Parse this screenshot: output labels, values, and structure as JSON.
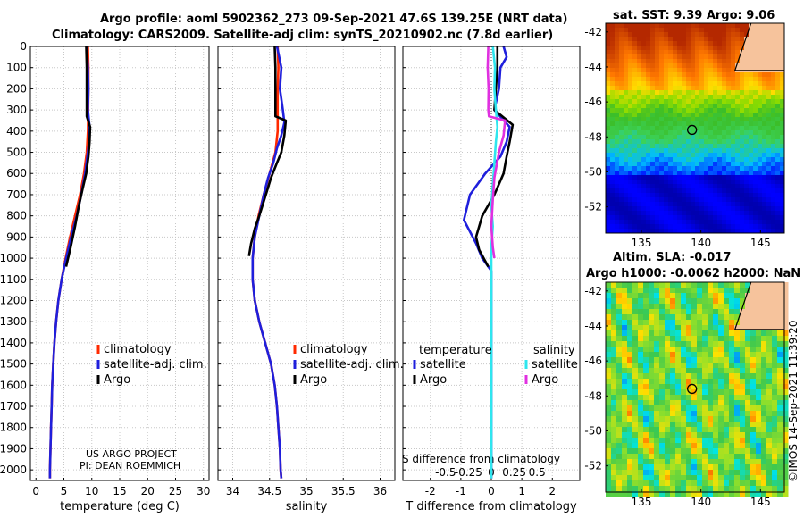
{
  "titles": {
    "line1": "Argo profile: aoml 5902362_273 09-Sep-2021 47.6S 139.25E (NRT data)",
    "line2": "Climatology: CARS2009. Satellite-adj clim: synTS_20210902.nc (7.8d earlier)",
    "sst": "sat. SST: 9.39 Argo: 9.06",
    "sla1": "Altim. SLA: -0.017",
    "sla2": "Argo h1000: -0.0062 h2000: NaN",
    "timestamp": "©IMOS 14-Sep-2021 11:39:20"
  },
  "project": {
    "line1": "US ARGO PROJECT",
    "line2": "PI: DEAN ROEMMICH"
  },
  "colors": {
    "climatology": "#ff2a00",
    "satellite": "#1f1fdc",
    "argo": "#000000",
    "sat_salinity": "#2ee6ee",
    "argo_salinity": "#e030e0",
    "grid": "#c8c8c8"
  },
  "depth_ticks": [
    "0",
    "100",
    "200",
    "300",
    "400",
    "500",
    "600",
    "700",
    "800",
    "900",
    "1000",
    "1100",
    "1200",
    "1300",
    "1400",
    "1500",
    "1600",
    "1700",
    "1800",
    "1900",
    "2000"
  ],
  "chart_data": [
    {
      "type": "line",
      "id": "temperature",
      "xlabel": "temperature (deg C)",
      "ylabel": "depth",
      "xlim": [
        -1,
        31
      ],
      "ylim": [
        2050,
        0
      ],
      "xticks": [
        0,
        5,
        10,
        15,
        20,
        25,
        30
      ],
      "xtick_labels": [
        "0",
        "5",
        "10",
        "15",
        "20",
        "25",
        "30"
      ],
      "legend": {
        "position": "bottom-right",
        "items": [
          "climatology",
          "satellite-adj. clim.",
          "Argo"
        ]
      },
      "series": [
        {
          "name": "climatology",
          "color": "#ff2a00",
          "points": [
            [
              9.3,
              0
            ],
            [
              9.4,
              100
            ],
            [
              9.4,
              200
            ],
            [
              9.35,
              300
            ],
            [
              9.3,
              400
            ],
            [
              9.1,
              500
            ],
            [
              8.6,
              600
            ],
            [
              7.9,
              700
            ],
            [
              7.0,
              800
            ],
            [
              6.1,
              900
            ],
            [
              5.3,
              1000
            ],
            [
              4.6,
              1100
            ],
            [
              4.0,
              1200
            ],
            [
              3.6,
              1300
            ],
            [
              3.3,
              1400
            ],
            [
              3.1,
              1500
            ],
            [
              2.9,
              1600
            ],
            [
              2.8,
              1700
            ],
            [
              2.7,
              1800
            ],
            [
              2.6,
              1900
            ],
            [
              2.5,
              2000
            ],
            [
              2.5,
              2040
            ]
          ]
        },
        {
          "name": "satellite-adj. clim.",
          "color": "#1f1fdc",
          "points": [
            [
              9.1,
              0
            ],
            [
              9.3,
              100
            ],
            [
              9.4,
              200
            ],
            [
              9.3,
              300
            ],
            [
              9.6,
              380
            ],
            [
              9.5,
              450
            ],
            [
              9.3,
              500
            ],
            [
              8.8,
              600
            ],
            [
              8.1,
              700
            ],
            [
              7.3,
              800
            ],
            [
              6.3,
              900
            ],
            [
              5.4,
              1000
            ],
            [
              4.6,
              1100
            ],
            [
              4.0,
              1200
            ],
            [
              3.6,
              1300
            ],
            [
              3.3,
              1400
            ],
            [
              3.1,
              1500
            ],
            [
              2.9,
              1600
            ],
            [
              2.8,
              1700
            ],
            [
              2.7,
              1800
            ],
            [
              2.6,
              1900
            ],
            [
              2.5,
              2000
            ],
            [
              2.5,
              2040
            ]
          ]
        },
        {
          "name": "Argo",
          "color": "#000000",
          "points": [
            [
              9.0,
              0
            ],
            [
              9.1,
              100
            ],
            [
              9.1,
              200
            ],
            [
              9.1,
              330
            ],
            [
              9.7,
              380
            ],
            [
              9.6,
              450
            ],
            [
              9.4,
              520
            ],
            [
              9.0,
              600
            ],
            [
              8.3,
              680
            ],
            [
              7.7,
              750
            ],
            [
              7.0,
              850
            ],
            [
              6.2,
              950
            ],
            [
              5.4,
              1040
            ]
          ]
        }
      ]
    },
    {
      "type": "line",
      "id": "salinity",
      "xlabel": "salinity",
      "ylabel": "depth",
      "xlim": [
        33.8,
        36.2
      ],
      "ylim": [
        2050,
        0
      ],
      "xticks": [
        34,
        34.5,
        35,
        35.5,
        36
      ],
      "xtick_labels": [
        "34",
        "34.5",
        "35",
        "35.5",
        "36"
      ],
      "legend": {
        "position": "bottom-right",
        "items": [
          "climatology",
          "satellite-adj. clim.",
          "Argo"
        ]
      },
      "series": [
        {
          "name": "climatology",
          "color": "#ff2a00",
          "points": [
            [
              34.61,
              0
            ],
            [
              34.62,
              100
            ],
            [
              34.61,
              200
            ],
            [
              34.61,
              300
            ],
            [
              34.61,
              400
            ],
            [
              34.58,
              500
            ],
            [
              34.5,
              600
            ],
            [
              34.42,
              700
            ],
            [
              34.35,
              800
            ],
            [
              34.3,
              900
            ],
            [
              34.27,
              1000
            ],
            [
              34.27,
              1100
            ],
            [
              34.3,
              1200
            ],
            [
              34.36,
              1300
            ],
            [
              34.44,
              1400
            ],
            [
              34.52,
              1500
            ],
            [
              34.57,
              1600
            ],
            [
              34.6,
              1700
            ],
            [
              34.62,
              1800
            ],
            [
              34.64,
              1900
            ],
            [
              34.65,
              2000
            ],
            [
              34.66,
              2040
            ]
          ]
        },
        {
          "name": "satellite-adj. clim.",
          "color": "#1f1fdc",
          "points": [
            [
              34.6,
              0
            ],
            [
              34.63,
              50
            ],
            [
              34.66,
              100
            ],
            [
              34.64,
              200
            ],
            [
              34.68,
              300
            ],
            [
              34.7,
              360
            ],
            [
              34.66,
              420
            ],
            [
              34.6,
              480
            ],
            [
              34.55,
              550
            ],
            [
              34.48,
              620
            ],
            [
              34.42,
              700
            ],
            [
              34.36,
              800
            ],
            [
              34.3,
              900
            ],
            [
              34.27,
              1000
            ],
            [
              34.27,
              1100
            ],
            [
              34.3,
              1200
            ],
            [
              34.36,
              1300
            ],
            [
              34.44,
              1400
            ],
            [
              34.52,
              1500
            ],
            [
              34.57,
              1600
            ],
            [
              34.6,
              1700
            ],
            [
              34.62,
              1800
            ],
            [
              34.64,
              1900
            ],
            [
              34.65,
              2000
            ],
            [
              34.66,
              2040
            ]
          ]
        },
        {
          "name": "Argo",
          "color": "#000000",
          "points": [
            [
              34.57,
              0
            ],
            [
              34.58,
              100
            ],
            [
              34.58,
              200
            ],
            [
              34.58,
              330
            ],
            [
              34.72,
              350
            ],
            [
              34.7,
              420
            ],
            [
              34.66,
              500
            ],
            [
              34.6,
              550
            ],
            [
              34.52,
              620
            ],
            [
              34.45,
              700
            ],
            [
              34.36,
              800
            ],
            [
              34.3,
              860
            ],
            [
              34.25,
              930
            ],
            [
              34.22,
              990
            ]
          ]
        }
      ]
    },
    {
      "type": "line",
      "id": "differences",
      "xlabel": "T difference from climatology",
      "xlabel2": "S difference from climatology",
      "ylabel": "depth",
      "xlim": [
        -2.9,
        2.9
      ],
      "ylim": [
        2050,
        0
      ],
      "xticks": [
        -2,
        -1,
        0,
        1,
        2
      ],
      "xtick_labels": [
        "-2",
        "-1",
        "0",
        "1",
        "2"
      ],
      "x2ticks": [
        -1.5,
        -0.75,
        0,
        0.75,
        1.5
      ],
      "x2tick_labels": [
        "-0.5",
        "-0.25",
        "0",
        "0.25",
        "0.5"
      ],
      "legend_temperature": {
        "heading": "temperature",
        "items": [
          "satellite",
          "Argo"
        ]
      },
      "legend_salinity": {
        "heading": "salinity",
        "items": [
          "satellite",
          "Argo"
        ]
      },
      "series": [
        {
          "name": "T satellite",
          "color": "#1f1fdc",
          "points": [
            [
              0.4,
              0
            ],
            [
              0.5,
              50
            ],
            [
              0.3,
              100
            ],
            [
              0.25,
              200
            ],
            [
              0.1,
              300
            ],
            [
              0.6,
              380
            ],
            [
              0.5,
              450
            ],
            [
              0.3,
              520
            ],
            [
              -0.2,
              600
            ],
            [
              -0.7,
              700
            ],
            [
              -0.9,
              820
            ],
            [
              -0.5,
              930
            ],
            [
              -0.3,
              1000
            ],
            [
              0,
              1060
            ],
            [
              0,
              1150
            ],
            [
              0,
              1300
            ],
            [
              0,
              1600
            ],
            [
              0,
              2040
            ]
          ]
        },
        {
          "name": "T Argo",
          "color": "#000000",
          "points": [
            [
              0.2,
              0
            ],
            [
              0.2,
              100
            ],
            [
              0.15,
              200
            ],
            [
              0.1,
              300
            ],
            [
              0.7,
              370
            ],
            [
              0.6,
              450
            ],
            [
              0.5,
              520
            ],
            [
              0.4,
              600
            ],
            [
              0.1,
              700
            ],
            [
              -0.3,
              800
            ],
            [
              -0.5,
              900
            ],
            [
              -0.4,
              960
            ],
            [
              -0.1,
              1040
            ]
          ]
        },
        {
          "name": "S satellite",
          "color": "#2ee6ee",
          "points": [
            [
              0.05,
              0
            ],
            [
              0.12,
              100
            ],
            [
              0.1,
              200
            ],
            [
              0.15,
              300
            ],
            [
              0.2,
              380
            ],
            [
              0.15,
              450
            ],
            [
              0.1,
              550
            ],
            [
              0.05,
              650
            ],
            [
              0,
              750
            ],
            [
              0.05,
              850
            ],
            [
              0,
              950
            ],
            [
              0,
              1100
            ],
            [
              0,
              1500
            ],
            [
              0,
              2040
            ]
          ]
        },
        {
          "name": "S Argo",
          "color": "#e030e0",
          "points": [
            [
              -0.1,
              0
            ],
            [
              -0.12,
              100
            ],
            [
              -0.09,
              200
            ],
            [
              -0.1,
              300
            ],
            [
              -0.08,
              330
            ],
            [
              0.45,
              350
            ],
            [
              0.4,
              420
            ],
            [
              0.25,
              500
            ],
            [
              0.1,
              620
            ],
            [
              0.05,
              720
            ],
            [
              0,
              850
            ],
            [
              0.05,
              950
            ],
            [
              0.1,
              1000
            ]
          ]
        }
      ]
    },
    {
      "type": "heatmap",
      "id": "sst_map",
      "title": "sat. SST: 9.39 Argo: 9.06",
      "xlim": [
        132,
        147
      ],
      "ylim": [
        -53.5,
        -41.5
      ],
      "xticks": [
        135,
        140,
        145
      ],
      "xtick_labels": [
        "135",
        "140",
        "145"
      ],
      "yticks": [
        -42,
        -44,
        -46,
        -48,
        -50,
        -52
      ],
      "ytick_labels": [
        "-42",
        "-44",
        "-46",
        "-48",
        "-50",
        "-52"
      ],
      "marker": [
        139.25,
        -47.6
      ]
    },
    {
      "type": "heatmap",
      "id": "sla_map",
      "title": "Altim. SLA: -0.017",
      "xlim": [
        132,
        147
      ],
      "ylim": [
        -53.5,
        -41.5
      ],
      "xticks": [
        135,
        140,
        145
      ],
      "xtick_labels": [
        "135",
        "140",
        "145"
      ],
      "yticks": [
        -42,
        -44,
        -46,
        -48,
        -50,
        -52
      ],
      "ytick_labels": [
        "-42",
        "-44",
        "-46",
        "-48",
        "-50",
        "-52"
      ],
      "marker": [
        139.25,
        -47.6
      ]
    }
  ]
}
